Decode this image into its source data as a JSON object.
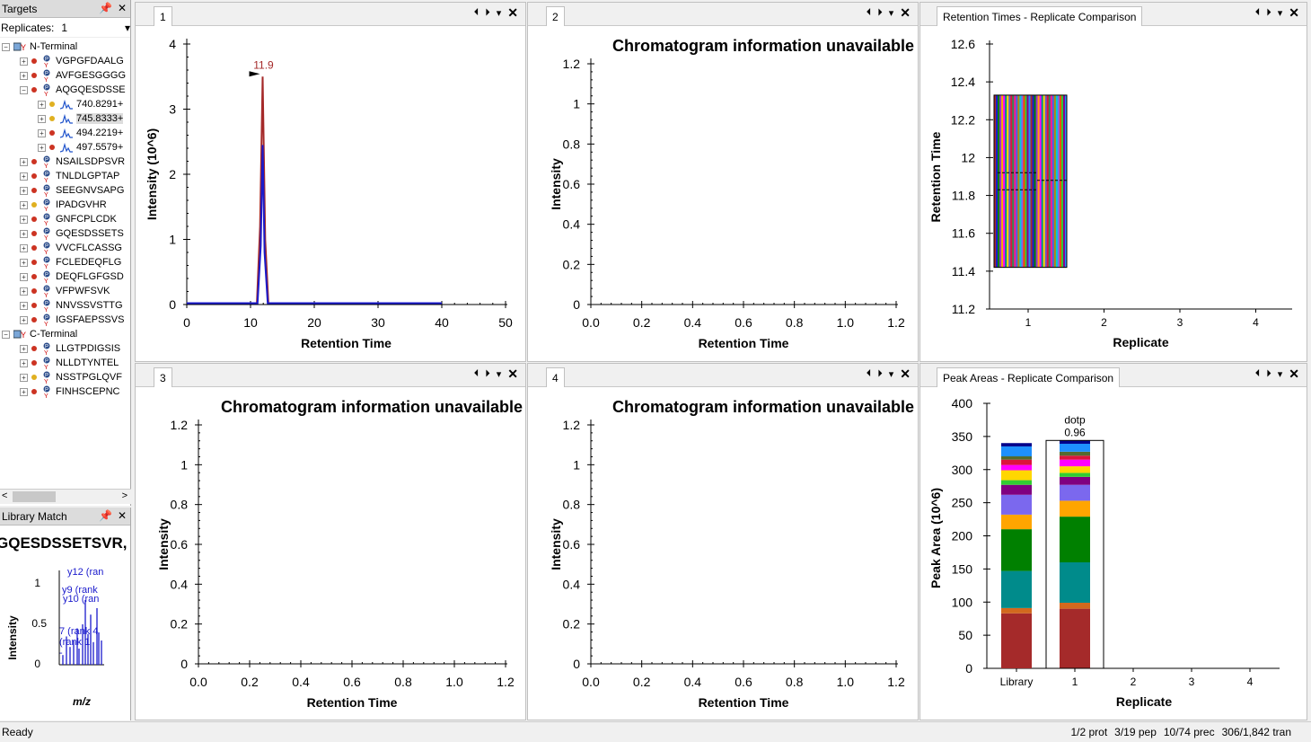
{
  "targets": {
    "title": "Targets",
    "pin_icon": "pin-icon",
    "close_icon": "close-icon",
    "replicates_label": "Replicates:",
    "replicates_value": "1",
    "tree": [
      {
        "level": 0,
        "text": "N-Terminal",
        "kind": "protein",
        "expander": "−"
      },
      {
        "level": 1,
        "text": "VGPGFDAALG",
        "kind": "peptide",
        "dot": "#cc3322",
        "expander": "+"
      },
      {
        "level": 1,
        "text": "AVFGESGGGG",
        "kind": "peptide",
        "dot": "#cc3322",
        "expander": "+"
      },
      {
        "level": 1,
        "text": "AQGQESDSSE",
        "kind": "peptide",
        "dot": "#cc3322",
        "expander": "−"
      },
      {
        "level": 2,
        "text": "740.8291+",
        "kind": "precursor",
        "dot": "#e0b020",
        "expander": "+"
      },
      {
        "level": 2,
        "text": "745.8333+",
        "kind": "precursor",
        "dot": "#e0b020",
        "expander": "+",
        "highlight": true
      },
      {
        "level": 2,
        "text": "494.2219+",
        "kind": "precursor",
        "dot": "#cc3322",
        "expander": "+"
      },
      {
        "level": 2,
        "text": "497.5579+",
        "kind": "precursor",
        "dot": "#cc3322",
        "expander": "+"
      },
      {
        "level": 1,
        "text": "NSAILSDPSVR",
        "kind": "peptide",
        "dot": "#cc3322",
        "expander": "+"
      },
      {
        "level": 1,
        "text": "TNLDLGPTAP",
        "kind": "peptide",
        "dot": "#cc3322",
        "expander": "+"
      },
      {
        "level": 1,
        "text": "SEEGNVSAPG",
        "kind": "peptide",
        "dot": "#cc3322",
        "expander": "+"
      },
      {
        "level": 1,
        "text": "IPADGVHR",
        "kind": "peptide",
        "dot": "#e0b020",
        "expander": "+",
        "mark": "R"
      },
      {
        "level": 1,
        "text": "GNFCPLCDK",
        "kind": "peptide",
        "dot": "#cc3322",
        "expander": "+",
        "mark": "K"
      },
      {
        "level": 1,
        "text": "GQESDSSETS",
        "kind": "peptide",
        "dot": "#cc3322",
        "expander": "+"
      },
      {
        "level": 1,
        "text": "VVCFLCASSG",
        "kind": "peptide",
        "dot": "#cc3322",
        "expander": "+"
      },
      {
        "level": 1,
        "text": "FCLEDEQFLG",
        "kind": "peptide",
        "dot": "#cc3322",
        "expander": "+"
      },
      {
        "level": 1,
        "text": "DEQFLGFGSD",
        "kind": "peptide",
        "dot": "#cc3322",
        "expander": "+"
      },
      {
        "level": 1,
        "text": "VFPWFSVK",
        "kind": "peptide",
        "dot": "#cc3322",
        "expander": "+",
        "mark": "K"
      },
      {
        "level": 1,
        "text": "NNVSSVSTTG",
        "kind": "peptide",
        "dot": "#cc3322",
        "expander": "+"
      },
      {
        "level": 1,
        "text": "IGSFAEPSSVS",
        "kind": "peptide",
        "dot": "#cc3322",
        "expander": "+"
      },
      {
        "level": 0,
        "text": "C-Terminal",
        "kind": "protein",
        "expander": "−"
      },
      {
        "level": 1,
        "text": "LLGTPDIGSIS",
        "kind": "peptide",
        "dot": "#cc3322",
        "expander": "+"
      },
      {
        "level": 1,
        "text": "NLLDTYNTEL",
        "kind": "peptide",
        "dot": "#cc3322",
        "expander": "+"
      },
      {
        "level": 1,
        "text": "NSSTPGLQVF",
        "kind": "peptide",
        "dot": "#e0b020",
        "expander": "+"
      },
      {
        "level": 1,
        "text": "FINHSCEPNC",
        "kind": "peptide",
        "dot": "#cc3322",
        "expander": "+"
      }
    ],
    "scroll_left": "<",
    "scroll_right": ">"
  },
  "library_match": {
    "title": "Library Match",
    "sequence": "GQESDSSETSVR,",
    "ylabel": "Intensity",
    "xlabel": "m/z",
    "yticks": [
      "1",
      "0.5",
      "0"
    ],
    "annotations": [
      "y12 (ran",
      "y9 (rank",
      "y10 (ran",
      "7 (rank 4",
      "(rank 1",
      "-"
    ]
  },
  "panes": {
    "p1": {
      "tab": "1"
    },
    "p2": {
      "tab": "2"
    },
    "p3": {
      "tab": "3"
    },
    "p4": {
      "tab": "4"
    },
    "rt": {
      "tab": "Retention Times - Replicate Comparison"
    },
    "pa": {
      "tab": "Peak Areas - Replicate Comparison"
    },
    "ctrl_prev": "⏴",
    "ctrl_next": "⏵",
    "ctrl_menu": "▾",
    "ctrl_close": "✕"
  },
  "chart_data": [
    {
      "id": "chrom-1",
      "type": "line",
      "title": "",
      "xlabel": "Retention Time",
      "ylabel": "Intensity (10^6)",
      "xlim": [
        0,
        50
      ],
      "ylim": [
        0,
        4
      ],
      "xticks": [
        "0",
        "10",
        "20",
        "30",
        "40",
        "50"
      ],
      "yticks": [
        "0",
        "1",
        "2",
        "3",
        "4"
      ],
      "annotation": "11.9",
      "series": [
        {
          "color": "#a52a2a",
          "x": [
            0,
            11.0,
            11.5,
            11.9,
            12.3,
            12.8,
            40
          ],
          "y": [
            0.02,
            0.02,
            1.2,
            3.5,
            1.0,
            0.02,
            0.02
          ]
        },
        {
          "color": "#1a1acc",
          "x": [
            0,
            11.1,
            11.6,
            11.9,
            12.2,
            12.7,
            40
          ],
          "y": [
            0.02,
            0.02,
            0.9,
            2.45,
            0.8,
            0.02,
            0.02
          ]
        }
      ]
    },
    {
      "id": "chrom-2",
      "type": "line",
      "title": "Chromatogram information unavailable",
      "xlabel": "Retention Time",
      "ylabel": "Intensity",
      "xlim": [
        0,
        1.2
      ],
      "ylim": [
        0,
        1.2
      ],
      "xticks": [
        "0.0",
        "0.2",
        "0.4",
        "0.6",
        "0.8",
        "1.0",
        "1.2"
      ],
      "yticks": [
        "0",
        "0.2",
        "0.4",
        "0.6",
        "0.8",
        "1",
        "1.2"
      ],
      "series": []
    },
    {
      "id": "chrom-3",
      "type": "line",
      "title": "Chromatogram information unavailable",
      "xlabel": "Retention Time",
      "ylabel": "Intensity",
      "xlim": [
        0,
        1.2
      ],
      "ylim": [
        0,
        1.2
      ],
      "xticks": [
        "0.0",
        "0.2",
        "0.4",
        "0.6",
        "0.8",
        "1.0",
        "1.2"
      ],
      "yticks": [
        "0",
        "0.2",
        "0.4",
        "0.6",
        "0.8",
        "1",
        "1.2"
      ],
      "series": []
    },
    {
      "id": "chrom-4",
      "type": "line",
      "title": "Chromatogram information unavailable",
      "xlabel": "Retention Time",
      "ylabel": "Intensity",
      "xlim": [
        0,
        1.2
      ],
      "ylim": [
        0,
        1.2
      ],
      "xticks": [
        "0.0",
        "0.2",
        "0.4",
        "0.6",
        "0.8",
        "1.0",
        "1.2"
      ],
      "yticks": [
        "0",
        "0.2",
        "0.4",
        "0.6",
        "0.8",
        "1",
        "1.2"
      ],
      "series": []
    },
    {
      "id": "retention-times",
      "type": "bar",
      "xlabel": "Replicate",
      "ylabel": "Retention Time",
      "ylim": [
        11.2,
        12.6
      ],
      "xticks": [
        "1",
        "2",
        "3",
        "4"
      ],
      "yticks": [
        "11.2",
        "11.4",
        "11.6",
        "11.8",
        "12",
        "12.2",
        "12.4",
        "12.6"
      ],
      "box": {
        "replicate": 1,
        "min": 11.42,
        "max": 12.33
      },
      "stripe_colors": [
        "#a52a2a",
        "#1a1acc",
        "#008000",
        "#9932cc",
        "#ffa500",
        "#ff00ff",
        "#008b8b",
        "#ffd700",
        "#6a5acd",
        "#dc143c",
        "#2e8b57",
        "#ff1493",
        "#4169e1",
        "#b8860b",
        "#00ced1",
        "#7b68ee",
        "#ff4500",
        "#32cd32",
        "#8b008b",
        "#1e90ff"
      ]
    },
    {
      "id": "peak-areas",
      "type": "bar",
      "stacked": true,
      "xlabel": "Replicate",
      "ylabel": "Peak Area (10^6)",
      "ylim": [
        0,
        400
      ],
      "categories": [
        "Library",
        "1",
        "2",
        "3",
        "4"
      ],
      "yticks": [
        "0",
        "50",
        "100",
        "150",
        "200",
        "250",
        "300",
        "350",
        "400"
      ],
      "dotp_label": "dotp",
      "dotp_value": "0.96",
      "stacks": [
        {
          "category": "Library",
          "segments": [
            {
              "color": "#a52a2a",
              "value": 83
            },
            {
              "color": "#d2691e",
              "value": 8
            },
            {
              "color": "#008b8b",
              "value": 56
            },
            {
              "color": "#008000",
              "value": 63
            },
            {
              "color": "#ffa500",
              "value": 22
            },
            {
              "color": "#7b68ee",
              "value": 30
            },
            {
              "color": "#800080",
              "value": 15
            },
            {
              "color": "#32cd32",
              "value": 7
            },
            {
              "color": "#ffd700",
              "value": 15
            },
            {
              "color": "#ff00ff",
              "value": 8
            },
            {
              "color": "#dc143c",
              "value": 8
            },
            {
              "color": "#556b2f",
              "value": 5
            },
            {
              "color": "#1e90ff",
              "value": 15
            },
            {
              "color": "#00008b",
              "value": 5
            }
          ]
        },
        {
          "category": "1",
          "segments": [
            {
              "color": "#a52a2a",
              "value": 90
            },
            {
              "color": "#d2691e",
              "value": 9
            },
            {
              "color": "#008b8b",
              "value": 61
            },
            {
              "color": "#008000",
              "value": 69
            },
            {
              "color": "#ffa500",
              "value": 24
            },
            {
              "color": "#7b68ee",
              "value": 24
            },
            {
              "color": "#800080",
              "value": 12
            },
            {
              "color": "#32cd32",
              "value": 6
            },
            {
              "color": "#ffd700",
              "value": 10
            },
            {
              "color": "#ff00ff",
              "value": 10
            },
            {
              "color": "#dc143c",
              "value": 6
            },
            {
              "color": "#556b2f",
              "value": 6
            },
            {
              "color": "#1e90ff",
              "value": 12
            },
            {
              "color": "#00008b",
              "value": 5
            }
          ]
        },
        {
          "category": "2",
          "segments": []
        },
        {
          "category": "3",
          "segments": []
        },
        {
          "category": "4",
          "segments": []
        }
      ]
    }
  ],
  "status": {
    "left": "Ready",
    "prot": "1/2 prot",
    "pep": "3/19 pep",
    "prec": "10/74 prec",
    "tran": "306/1,842 tran"
  }
}
